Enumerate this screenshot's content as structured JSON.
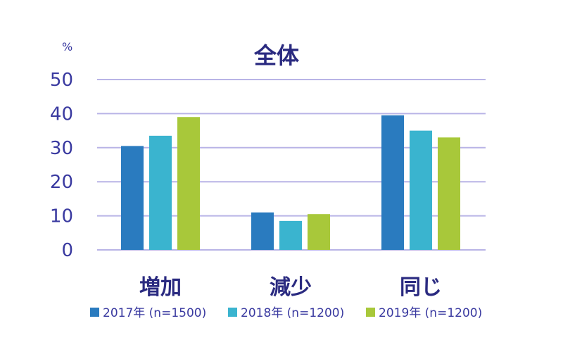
{
  "chart_data": {
    "type": "bar",
    "title": "全体",
    "ylabel": "%",
    "xlabel": "",
    "ylim": [
      0,
      50
    ],
    "yticks": [
      0,
      10,
      20,
      30,
      40,
      50
    ],
    "grid": true,
    "legend_position": "bottom",
    "categories": [
      "増加",
      "減少",
      "同じ"
    ],
    "series": [
      {
        "name": "2017年 (n=1500)",
        "color": "#2a7bbf",
        "values": [
          30.5,
          11,
          39.5
        ]
      },
      {
        "name": "2018年 (n=1200)",
        "color": "#3ab4cf",
        "values": [
          33.5,
          8.5,
          35
        ]
      },
      {
        "name": "2019年 (n=1200)",
        "color": "#a8c83a",
        "values": [
          39,
          10.5,
          33
        ]
      }
    ]
  }
}
